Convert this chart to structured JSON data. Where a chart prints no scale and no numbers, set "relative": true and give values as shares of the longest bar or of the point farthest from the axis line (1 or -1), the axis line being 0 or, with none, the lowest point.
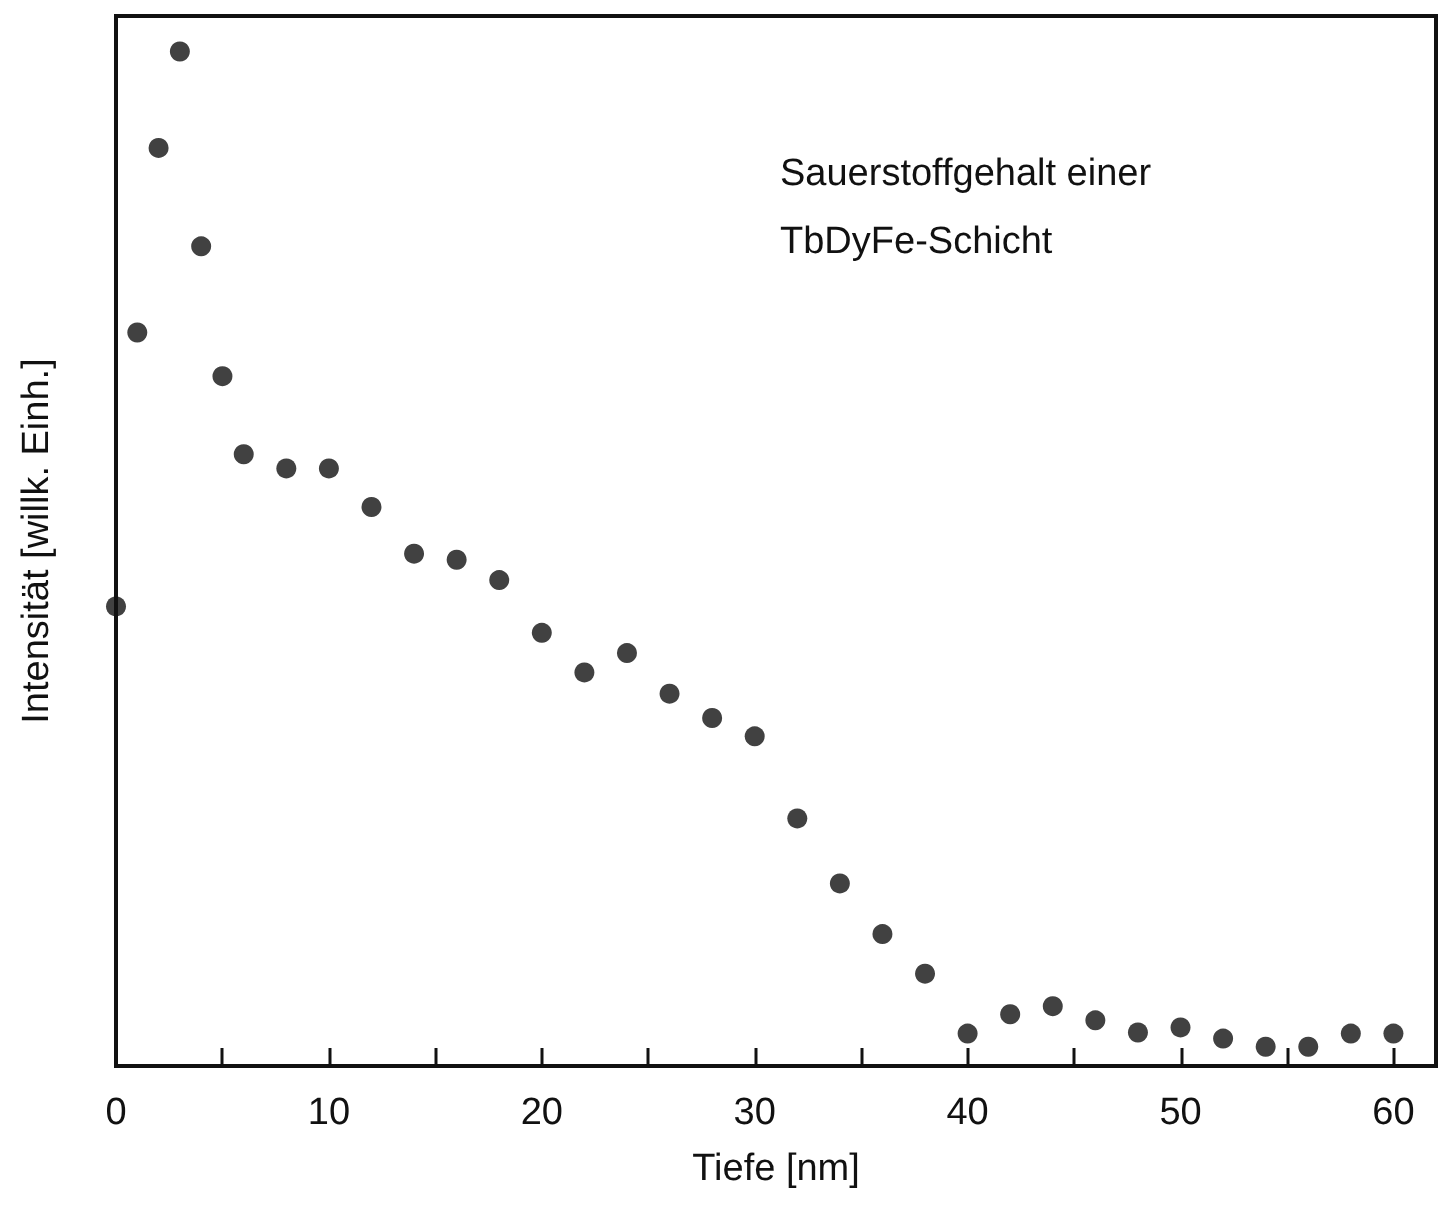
{
  "chart_data": {
    "type": "scatter",
    "xlabel": "Tiefe [nm]",
    "ylabel": "Intensität [willk. Einh.]",
    "annotations": [
      "Sauerstoffgehalt einer\nTbDyFe-Schicht"
    ],
    "relative": true,
    "marker": "circle",
    "grid": false,
    "x": [
      0,
      1,
      2,
      3,
      4,
      5,
      6,
      8,
      10,
      12,
      14,
      16,
      18,
      20,
      22,
      24,
      26,
      28,
      30,
      32,
      34,
      36,
      38,
      40,
      42,
      44,
      46,
      48,
      50,
      52,
      54,
      56,
      58,
      60
    ],
    "series": [
      {
        "color": "#111111",
        "values": [
          0.453,
          0.723,
          0.905,
          1.0,
          0.808,
          0.68,
          0.603,
          0.589,
          0.589,
          0.551,
          0.505,
          0.499,
          0.479,
          0.427,
          0.388,
          0.407,
          0.367,
          0.343,
          0.325,
          0.244,
          0.18,
          0.13,
          0.091,
          0.032,
          0.051,
          0.059,
          0.045,
          0.033,
          0.038,
          0.027,
          0.019,
          0.019,
          0.032,
          0.032
        ]
      }
    ],
    "xlim": [
      0,
      62
    ],
    "xticks": [
      0,
      {
        "value": 5,
        "label": null
      },
      10,
      {
        "value": 15,
        "label": null
      },
      20,
      {
        "value": 25,
        "label": null
      },
      30,
      {
        "value": 35,
        "label": null
      },
      40,
      {
        "value": 45,
        "label": null
      },
      50,
      {
        "value": 55,
        "label": null
      },
      60
    ]
  }
}
